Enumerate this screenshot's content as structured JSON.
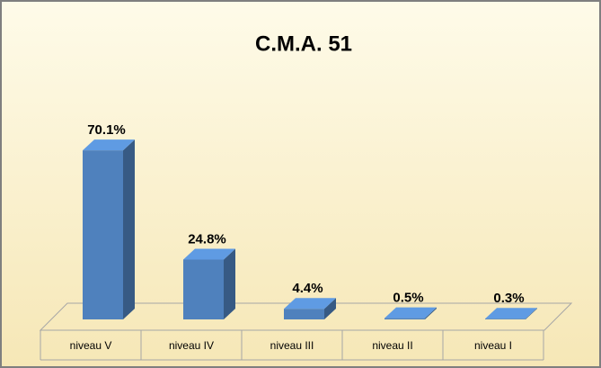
{
  "chart_data": {
    "type": "bar3d",
    "title": "C.M.A. 51",
    "categories": [
      "niveau V",
      "niveau IV",
      "niveau III",
      "niveau II",
      "niveau I"
    ],
    "values": [
      70.1,
      24.8,
      4.4,
      0.5,
      0.3
    ],
    "value_labels": [
      "70.1%",
      "24.8%",
      "4.4%",
      "0.5%",
      "0.3%"
    ],
    "color": "#4f81bd"
  }
}
